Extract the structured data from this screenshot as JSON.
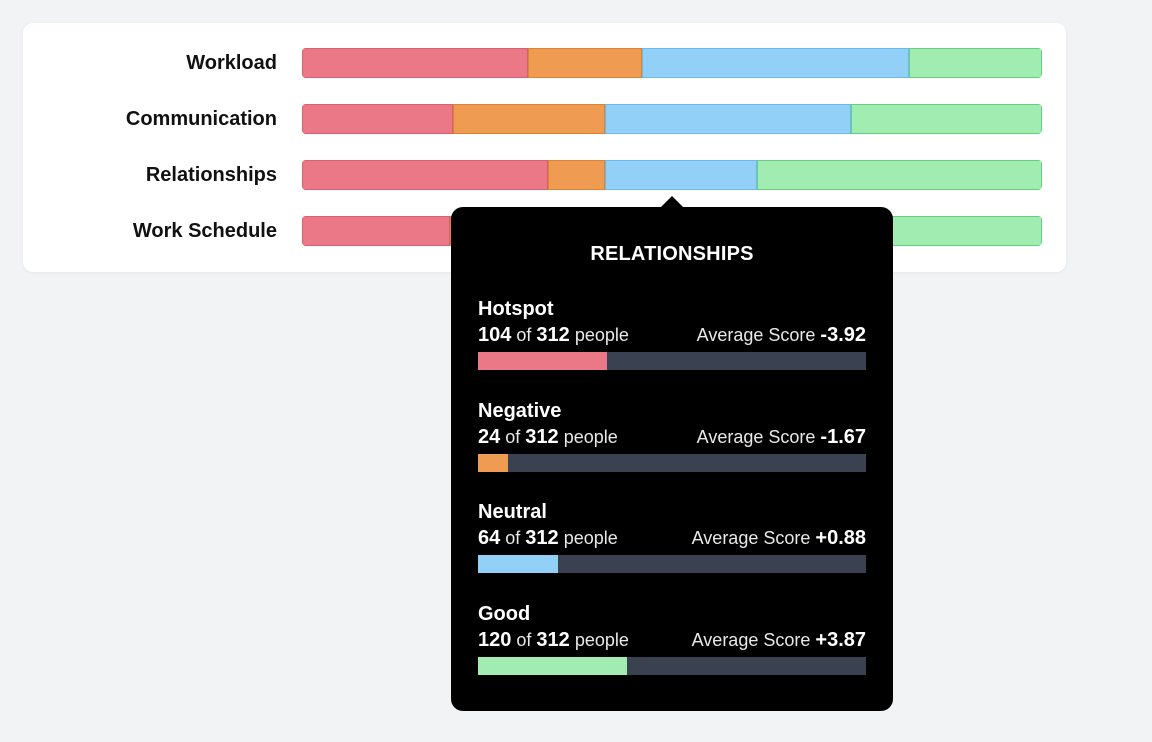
{
  "rows": [
    {
      "label": "Workload",
      "segments": [
        0.306,
        0.154,
        0.36,
        0.18
      ]
    },
    {
      "label": "Communication",
      "segments": [
        0.204,
        0.205,
        0.333,
        0.258
      ]
    },
    {
      "label": "Relationships",
      "segments": [
        0.333,
        0.077,
        0.205,
        0.385
      ]
    },
    {
      "label": "Work Schedule",
      "segments": [
        0.2,
        0.25,
        0.3,
        0.25
      ]
    }
  ],
  "colors": {
    "hotspot": "#ea7886",
    "negative": "#ef9b52",
    "neutral": "#93d0f7",
    "good": "#a0ecb1",
    "track": "#3a4252"
  },
  "tooltip": {
    "title": "RELATIONSHIPS",
    "categories": [
      {
        "name": "Hotspot",
        "count": "104",
        "of_label": "of",
        "total": "312",
        "people_label": "people",
        "score_label": "Average Score",
        "score": "-3.92",
        "fraction": 0.3333,
        "color": "#ea7886"
      },
      {
        "name": "Negative",
        "count": "24",
        "of_label": "of",
        "total": "312",
        "people_label": "people",
        "score_label": "Average Score",
        "score": "-1.67",
        "fraction": 0.0769,
        "color": "#ef9b52"
      },
      {
        "name": "Neutral",
        "count": "64",
        "of_label": "of",
        "total": "312",
        "people_label": "people",
        "score_label": "Average Score",
        "score": "+0.88",
        "fraction": 0.2051,
        "color": "#93d0f7"
      },
      {
        "name": "Good",
        "count": "120",
        "of_label": "of",
        "total": "312",
        "people_label": "people",
        "score_label": "Average Score",
        "score": "+3.87",
        "fraction": 0.3846,
        "color": "#a0ecb1"
      }
    ]
  }
}
